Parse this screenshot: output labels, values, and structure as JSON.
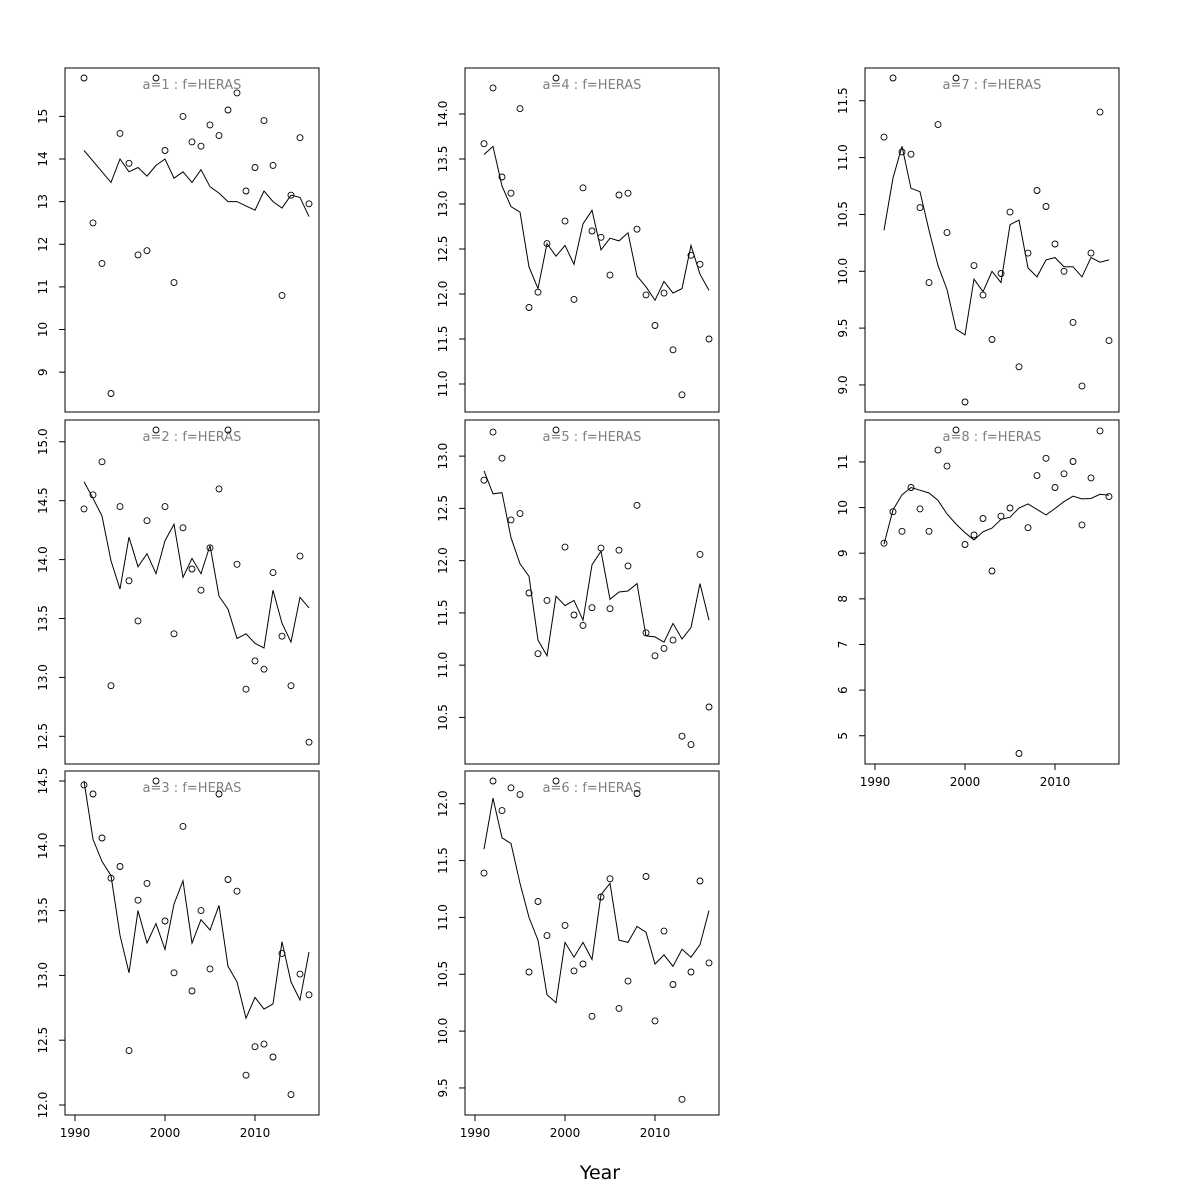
{
  "figure": {
    "xlabel": "Year"
  },
  "chart_data": [
    {
      "type": "line",
      "title": "a=1 : f=HERAS",
      "xlim": [
        1990,
        2016
      ],
      "ylim": [
        8.3,
        15.9
      ],
      "x_ticks": [],
      "y_ticks": [
        9,
        10,
        11,
        12,
        13,
        14,
        15
      ],
      "series": [
        {
          "kind": "points",
          "x": [
            1991,
            1992,
            1993,
            1994,
            1995,
            1996,
            1997,
            1998,
            1999,
            2000,
            2001,
            2002,
            2003,
            2004,
            2005,
            2006,
            2007,
            2008,
            2009,
            2010,
            2011,
            2012,
            2013,
            2014,
            2015,
            2016
          ],
          "y": [
            15.9,
            12.5,
            11.55,
            8.5,
            14.6,
            13.9,
            11.75,
            11.85,
            15.9,
            14.2,
            11.1,
            15.0,
            14.4,
            14.3,
            14.8,
            14.55,
            15.15,
            15.55,
            13.25,
            13.8,
            14.9,
            13.85,
            10.8,
            13.15,
            14.5,
            12.95
          ]
        },
        {
          "kind": "line",
          "x": [
            1991,
            1992,
            1993,
            1994,
            1995,
            1996,
            1997,
            1998,
            1999,
            2000,
            2001,
            2002,
            2003,
            2004,
            2005,
            2006,
            2007,
            2008,
            2009,
            2010,
            2011,
            2012,
            2013,
            2014,
            2015,
            2016
          ],
          "y": [
            14.2,
            13.95,
            13.7,
            13.45,
            14.0,
            13.7,
            13.8,
            13.6,
            13.85,
            14.0,
            13.55,
            13.7,
            13.45,
            13.75,
            13.35,
            13.2,
            13.0,
            13.0,
            12.9,
            12.8,
            13.25,
            13.0,
            12.85,
            13.15,
            13.1,
            12.65
          ]
        }
      ]
    },
    {
      "type": "line",
      "title": "a=2 : f=HERAS",
      "xlim": [
        1990,
        2016
      ],
      "ylim": [
        12.35,
        15.1
      ],
      "x_ticks": [],
      "y_ticks": [
        12.5,
        13.0,
        13.5,
        14.0,
        14.5,
        15.0
      ],
      "series": [
        {
          "kind": "points",
          "x": [
            1991,
            1992,
            1993,
            1994,
            1995,
            1996,
            1997,
            1998,
            1999,
            2000,
            2001,
            2002,
            2003,
            2004,
            2005,
            2006,
            2007,
            2008,
            2009,
            2010,
            2011,
            2012,
            2013,
            2014,
            2015,
            2016
          ],
          "y": [
            14.43,
            14.55,
            14.83,
            12.93,
            14.45,
            13.82,
            13.48,
            14.33,
            15.1,
            14.45,
            13.37,
            14.27,
            13.92,
            13.74,
            14.1,
            14.6,
            15.1,
            13.96,
            12.9,
            13.14,
            13.07,
            13.89,
            13.35,
            12.93,
            14.03,
            12.45
          ]
        },
        {
          "kind": "line",
          "x": [
            1991,
            1992,
            1993,
            1994,
            1995,
            1996,
            1997,
            1998,
            1999,
            2000,
            2001,
            2002,
            2003,
            2004,
            2005,
            2006,
            2007,
            2008,
            2009,
            2010,
            2011,
            2012,
            2013,
            2014,
            2015,
            2016
          ],
          "y": [
            14.66,
            14.52,
            14.37,
            13.99,
            13.75,
            14.19,
            13.94,
            14.05,
            13.88,
            14.16,
            14.3,
            13.85,
            14.01,
            13.88,
            14.12,
            13.69,
            13.58,
            13.33,
            13.37,
            13.29,
            13.25,
            13.74,
            13.46,
            13.3,
            13.68,
            13.59
          ]
        }
      ]
    },
    {
      "type": "line",
      "title": "a=3 : f=HERAS",
      "xlim": [
        1990,
        2016
      ],
      "ylim": [
        12.0,
        14.5
      ],
      "x_ticks": [
        1990,
        2000,
        2010
      ],
      "y_ticks": [
        12.0,
        12.5,
        13.0,
        13.5,
        14.0,
        14.5
      ],
      "series": [
        {
          "kind": "points",
          "x": [
            1991,
            1992,
            1993,
            1994,
            1995,
            1996,
            1997,
            1998,
            1999,
            2000,
            2001,
            2002,
            2003,
            2004,
            2005,
            2006,
            2007,
            2008,
            2009,
            2010,
            2011,
            2012,
            2013,
            2014,
            2015,
            2016
          ],
          "y": [
            14.47,
            14.4,
            14.06,
            13.75,
            13.84,
            12.42,
            13.58,
            13.71,
            14.5,
            13.42,
            13.02,
            14.15,
            12.88,
            13.5,
            13.05,
            14.4,
            13.74,
            13.65,
            12.23,
            12.45,
            12.47,
            12.37,
            13.17,
            12.08,
            13.01,
            12.85
          ]
        },
        {
          "kind": "line",
          "x": [
            1991,
            1992,
            1993,
            1994,
            1995,
            1996,
            1997,
            1998,
            1999,
            2000,
            2001,
            2002,
            2003,
            2004,
            2005,
            2006,
            2007,
            2008,
            2009,
            2010,
            2011,
            2012,
            2013,
            2014,
            2015,
            2016
          ],
          "y": [
            14.5,
            14.05,
            13.88,
            13.77,
            13.31,
            13.02,
            13.5,
            13.25,
            13.4,
            13.2,
            13.55,
            13.73,
            13.25,
            13.43,
            13.35,
            13.54,
            13.07,
            12.95,
            12.67,
            12.83,
            12.74,
            12.78,
            13.26,
            12.95,
            12.81,
            13.18
          ]
        }
      ]
    },
    {
      "type": "line",
      "title": "a=4 : f=HERAS",
      "xlim": [
        1990,
        2016
      ],
      "ylim": [
        10.8,
        14.4
      ],
      "x_ticks": [],
      "y_ticks": [
        11.0,
        11.5,
        12.0,
        12.5,
        13.0,
        13.5,
        14.0
      ],
      "series": [
        {
          "kind": "points",
          "x": [
            1991,
            1992,
            1993,
            1994,
            1995,
            1996,
            1997,
            1998,
            1999,
            2000,
            2001,
            2002,
            2003,
            2004,
            2005,
            2006,
            2007,
            2008,
            2009,
            2010,
            2011,
            2012,
            2013,
            2014,
            2015,
            2016
          ],
          "y": [
            13.67,
            14.29,
            13.3,
            13.12,
            14.06,
            11.85,
            12.02,
            12.56,
            14.4,
            12.81,
            11.94,
            13.18,
            12.7,
            12.63,
            12.21,
            13.1,
            13.12,
            12.72,
            11.99,
            11.65,
            12.01,
            11.38,
            10.88,
            12.43,
            12.33,
            11.5
          ]
        },
        {
          "kind": "line",
          "x": [
            1991,
            1992,
            1993,
            1994,
            1995,
            1996,
            1997,
            1998,
            1999,
            2000,
            2001,
            2002,
            2003,
            2004,
            2005,
            2006,
            2007,
            2008,
            2009,
            2010,
            2011,
            2012,
            2013,
            2014,
            2015,
            2016
          ],
          "y": [
            13.55,
            13.64,
            13.2,
            12.97,
            12.91,
            12.3,
            12.06,
            12.56,
            12.42,
            12.54,
            12.33,
            12.78,
            12.93,
            12.49,
            12.62,
            12.59,
            12.68,
            12.2,
            12.08,
            11.93,
            12.14,
            12.01,
            12.06,
            12.54,
            12.22,
            12.04
          ]
        }
      ]
    },
    {
      "type": "line",
      "title": "a=5 : f=HERAS",
      "xlim": [
        1990,
        2016
      ],
      "ylim": [
        10.15,
        13.25
      ],
      "x_ticks": [],
      "y_ticks": [
        10.5,
        11.0,
        11.5,
        12.0,
        12.5,
        13.0
      ],
      "series": [
        {
          "kind": "points",
          "x": [
            1991,
            1992,
            1993,
            1994,
            1995,
            1996,
            1997,
            1998,
            1999,
            2000,
            2001,
            2002,
            2003,
            2004,
            2005,
            2006,
            2007,
            2008,
            2009,
            2010,
            2011,
            2012,
            2013,
            2014,
            2015,
            2016
          ],
          "y": [
            12.77,
            13.23,
            12.98,
            12.39,
            12.45,
            11.69,
            11.11,
            11.62,
            13.25,
            12.13,
            11.48,
            11.38,
            11.55,
            12.12,
            11.54,
            12.1,
            11.95,
            12.53,
            11.31,
            11.09,
            11.16,
            11.24,
            10.32,
            10.24,
            12.06,
            10.6
          ]
        },
        {
          "kind": "line",
          "x": [
            1991,
            1992,
            1993,
            1994,
            1995,
            1996,
            1997,
            1998,
            1999,
            2000,
            2001,
            2002,
            2003,
            2004,
            2005,
            2006,
            2007,
            2008,
            2009,
            2010,
            2011,
            2012,
            2013,
            2014,
            2015,
            2016
          ],
          "y": [
            12.86,
            12.64,
            12.65,
            12.22,
            11.97,
            11.85,
            11.24,
            11.09,
            11.66,
            11.57,
            11.62,
            11.43,
            11.96,
            12.09,
            11.63,
            11.7,
            11.71,
            11.78,
            11.28,
            11.27,
            11.22,
            11.4,
            11.25,
            11.36,
            11.78,
            11.43
          ]
        }
      ]
    },
    {
      "type": "line",
      "title": "a=6 : f=HERAS",
      "xlim": [
        1990,
        2016
      ],
      "ylim": [
        9.35,
        12.2
      ],
      "x_ticks": [
        1990,
        2000,
        2010
      ],
      "y_ticks": [
        9.5,
        10.0,
        10.5,
        11.0,
        11.5,
        12.0
      ],
      "series": [
        {
          "kind": "points",
          "x": [
            1991,
            1992,
            1993,
            1994,
            1995,
            1996,
            1997,
            1998,
            1999,
            2000,
            2001,
            2002,
            2003,
            2004,
            2005,
            2006,
            2007,
            2008,
            2009,
            2010,
            2011,
            2012,
            2013,
            2014,
            2015,
            2016
          ],
          "y": [
            11.39,
            12.2,
            11.94,
            12.14,
            12.08,
            10.52,
            11.14,
            10.84,
            12.2,
            10.93,
            10.53,
            10.59,
            10.13,
            11.18,
            11.34,
            10.2,
            10.44,
            12.09,
            11.36,
            10.09,
            10.88,
            10.41,
            9.4,
            10.52,
            11.32,
            10.6
          ]
        },
        {
          "kind": "line",
          "x": [
            1991,
            1992,
            1993,
            1994,
            1995,
            1996,
            1997,
            1998,
            1999,
            2000,
            2001,
            2002,
            2003,
            2004,
            2005,
            2006,
            2007,
            2008,
            2009,
            2010,
            2011,
            2012,
            2013,
            2014,
            2015,
            2016
          ],
          "y": [
            11.6,
            12.05,
            11.7,
            11.65,
            11.3,
            11.0,
            10.8,
            10.32,
            10.25,
            10.78,
            10.65,
            10.78,
            10.63,
            11.2,
            11.3,
            10.8,
            10.78,
            10.92,
            10.87,
            10.59,
            10.67,
            10.57,
            10.72,
            10.65,
            10.76,
            11.06
          ]
        }
      ]
    },
    {
      "type": "line",
      "title": "a=7 : f=HERAS",
      "xlim": [
        1990,
        2016
      ],
      "ylim": [
        8.85,
        11.7
      ],
      "x_ticks": [],
      "y_ticks": [
        9.0,
        9.5,
        10.0,
        10.5,
        11.0,
        11.5
      ],
      "series": [
        {
          "kind": "points",
          "x": [
            1991,
            1992,
            1993,
            1994,
            1995,
            1996,
            1997,
            1998,
            1999,
            2000,
            2001,
            2002,
            2003,
            2004,
            2005,
            2006,
            2007,
            2008,
            2009,
            2010,
            2011,
            2012,
            2013,
            2014,
            2015,
            2016
          ],
          "y": [
            11.18,
            11.7,
            11.05,
            11.03,
            10.56,
            9.9,
            11.29,
            10.34,
            11.7,
            8.85,
            10.05,
            9.79,
            9.4,
            9.98,
            10.52,
            9.16,
            10.16,
            10.71,
            10.57,
            10.24,
            10.0,
            9.55,
            8.99,
            10.16,
            11.4,
            9.39
          ]
        },
        {
          "kind": "line",
          "x": [
            1991,
            1992,
            1993,
            1994,
            1995,
            1996,
            1997,
            1998,
            1999,
            2000,
            2001,
            2002,
            2003,
            2004,
            2005,
            2006,
            2007,
            2008,
            2009,
            2010,
            2011,
            2012,
            2013,
            2014,
            2015,
            2016
          ],
          "y": [
            10.36,
            10.82,
            11.1,
            10.73,
            10.7,
            10.36,
            10.05,
            9.84,
            9.49,
            9.44,
            9.93,
            9.82,
            10.0,
            9.9,
            10.41,
            10.45,
            10.03,
            9.95,
            10.1,
            10.12,
            10.04,
            10.04,
            9.95,
            10.12,
            10.08,
            10.1
          ]
        }
      ]
    },
    {
      "type": "line",
      "title": "a=8 : f=HERAS",
      "xlim": [
        1990,
        2016
      ],
      "ylim": [
        4.6,
        11.7
      ],
      "x_ticks": [
        1990,
        2000,
        2010
      ],
      "y_ticks": [
        5,
        6,
        7,
        8,
        9,
        10,
        11
      ],
      "series": [
        {
          "kind": "points",
          "x": [
            1991,
            1992,
            1993,
            1994,
            1995,
            1996,
            1997,
            1998,
            1999,
            2000,
            2001,
            2002,
            2003,
            2004,
            2005,
            2006,
            2007,
            2008,
            2009,
            2010,
            2011,
            2012,
            2013,
            2014,
            2015,
            2016
          ],
          "y": [
            9.22,
            9.91,
            9.48,
            10.44,
            9.97,
            9.48,
            11.26,
            10.91,
            11.7,
            9.19,
            9.4,
            9.76,
            8.61,
            9.81,
            9.99,
            4.61,
            9.56,
            10.7,
            11.08,
            10.44,
            10.74,
            11.01,
            9.62,
            10.65,
            11.68,
            10.24
          ]
        },
        {
          "kind": "line",
          "x": [
            1991,
            1992,
            1993,
            1994,
            1995,
            1996,
            1997,
            1998,
            1999,
            2000,
            2001,
            2002,
            2003,
            2004,
            2005,
            2006,
            2007,
            2008,
            2009,
            2010,
            2011,
            2012,
            2013,
            2014,
            2015,
            2016
          ],
          "y": [
            9.2,
            9.95,
            10.28,
            10.44,
            10.38,
            10.32,
            10.16,
            9.86,
            9.64,
            9.45,
            9.29,
            9.47,
            9.55,
            9.74,
            9.79,
            9.99,
            10.08,
            9.96,
            9.84,
            9.98,
            10.13,
            10.25,
            10.19,
            10.2,
            10.29,
            10.27
          ]
        }
      ]
    }
  ]
}
